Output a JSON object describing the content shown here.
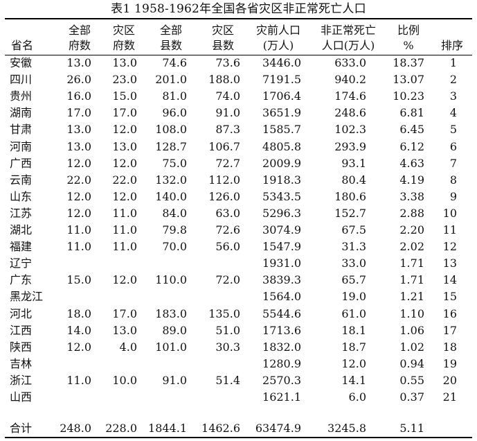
{
  "table": {
    "title": "表1 1958-1962年全国各省灾区非正常死亡人口",
    "headers": {
      "name": [
        "",
        "省名"
      ],
      "fu": [
        "全部",
        "府数"
      ],
      "fz": [
        "灾区",
        "府数"
      ],
      "xu": [
        "全部",
        "县数"
      ],
      "xz": [
        "灾区",
        "县数"
      ],
      "pop": [
        "灾前人口",
        "(万人)"
      ],
      "dead": [
        "非正常死亡",
        "人口(万人)"
      ],
      "rat": [
        "比例",
        "%"
      ],
      "rank": [
        "",
        "排序"
      ]
    },
    "rows": [
      {
        "name": "安徽",
        "fu": "13.0",
        "fz": "13.0",
        "xu": "74.6",
        "xz": "73.6",
        "pop": "3446.0",
        "dead": "633.0",
        "rat": "18.37",
        "rank": "1"
      },
      {
        "name": "四川",
        "fu": "26.0",
        "fz": "23.0",
        "xu": "201.0",
        "xz": "188.0",
        "pop": "7191.5",
        "dead": "940.2",
        "rat": "13.07",
        "rank": "2"
      },
      {
        "name": "贵州",
        "fu": "16.0",
        "fz": "15.0",
        "xu": "81.0",
        "xz": "74.0",
        "pop": "1706.4",
        "dead": "174.6",
        "rat": "10.23",
        "rank": "3"
      },
      {
        "name": "湖南",
        "fu": "17.0",
        "fz": "17.0",
        "xu": "96.0",
        "xz": "91.0",
        "pop": "3651.9",
        "dead": "248.6",
        "rat": "6.81",
        "rank": "4"
      },
      {
        "name": "甘肃",
        "fu": "13.0",
        "fz": "12.0",
        "xu": "108.0",
        "xz": "87.3",
        "pop": "1585.7",
        "dead": "102.3",
        "rat": "6.45",
        "rank": "5"
      },
      {
        "name": "河南",
        "fu": "13.0",
        "fz": "13.0",
        "xu": "128.7",
        "xz": "106.7",
        "pop": "4805.8",
        "dead": "293.9",
        "rat": "6.12",
        "rank": "6"
      },
      {
        "name": "广西",
        "fu": "12.0",
        "fz": "12.0",
        "xu": "75.0",
        "xz": "72.7",
        "pop": "2009.9",
        "dead": "93.1",
        "rat": "4.63",
        "rank": "7"
      },
      {
        "name": "云南",
        "fu": "22.0",
        "fz": "22.0",
        "xu": "132.0",
        "xz": "112.0",
        "pop": "1918.3",
        "dead": "80.4",
        "rat": "4.19",
        "rank": "8"
      },
      {
        "name": "山东",
        "fu": "12.0",
        "fz": "12.0",
        "xu": "140.0",
        "xz": "126.0",
        "pop": "5343.5",
        "dead": "180.6",
        "rat": "3.38",
        "rank": "9"
      },
      {
        "name": "江苏",
        "fu": "12.0",
        "fz": "11.0",
        "xu": "84.0",
        "xz": "63.0",
        "pop": "5296.3",
        "dead": "152.7",
        "rat": "2.88",
        "rank": "10"
      },
      {
        "name": "湖北",
        "fu": "11.0",
        "fz": "11.0",
        "xu": "79.8",
        "xz": "72.6",
        "pop": "3074.9",
        "dead": "67.5",
        "rat": "2.20",
        "rank": "11"
      },
      {
        "name": "福建",
        "fu": "11.0",
        "fz": "11.0",
        "xu": "70.0",
        "xz": "56.0",
        "pop": "1547.9",
        "dead": "31.3",
        "rat": "2.02",
        "rank": "12"
      },
      {
        "name": "辽宁",
        "fu": "",
        "fz": "",
        "xu": "",
        "xz": "",
        "pop": "1931.0",
        "dead": "33.0",
        "rat": "1.71",
        "rank": "13"
      },
      {
        "name": "广东",
        "fu": "15.0",
        "fz": "12.0",
        "xu": "110.0",
        "xz": "72.0",
        "pop": "3839.3",
        "dead": "65.7",
        "rat": "1.71",
        "rank": "14"
      },
      {
        "name": "黑龙江",
        "fu": "",
        "fz": "",
        "xu": "",
        "xz": "",
        "pop": "1564.0",
        "dead": "19.0",
        "rat": "1.21",
        "rank": "15"
      },
      {
        "name": "河北",
        "fu": "18.0",
        "fz": "17.0",
        "xu": "183.0",
        "xz": "135.0",
        "pop": "5544.6",
        "dead": "61.0",
        "rat": "1.10",
        "rank": "16"
      },
      {
        "name": "江西",
        "fu": "14.0",
        "fz": "13.0",
        "xu": "89.0",
        "xz": "51.0",
        "pop": "1713.6",
        "dead": "18.1",
        "rat": "1.06",
        "rank": "17"
      },
      {
        "name": "陕西",
        "fu": "12.0",
        "fz": "4.0",
        "xu": "101.0",
        "xz": "30.3",
        "pop": "1832.0",
        "dead": "18.7",
        "rat": "1.02",
        "rank": "18"
      },
      {
        "name": "吉林",
        "fu": "",
        "fz": "",
        "xu": "",
        "xz": "",
        "pop": "1280.9",
        "dead": "12.0",
        "rat": "0.94",
        "rank": "19"
      },
      {
        "name": "浙江",
        "fu": "11.0",
        "fz": "10.0",
        "xu": "91.0",
        "xz": "51.4",
        "pop": "2570.3",
        "dead": "14.1",
        "rat": "0.55",
        "rank": "20"
      },
      {
        "name": "山西",
        "fu": "",
        "fz": "",
        "xu": "",
        "xz": "",
        "pop": "1621.1",
        "dead": "6.0",
        "rat": "0.37",
        "rank": "21"
      }
    ],
    "total": {
      "name": "合计",
      "fu": "248.0",
      "fz": "228.0",
      "xu": "1844.1",
      "xz": "1462.6",
      "pop": "63474.9",
      "dead": "3245.8",
      "rat": "5.11",
      "rank": ""
    }
  }
}
